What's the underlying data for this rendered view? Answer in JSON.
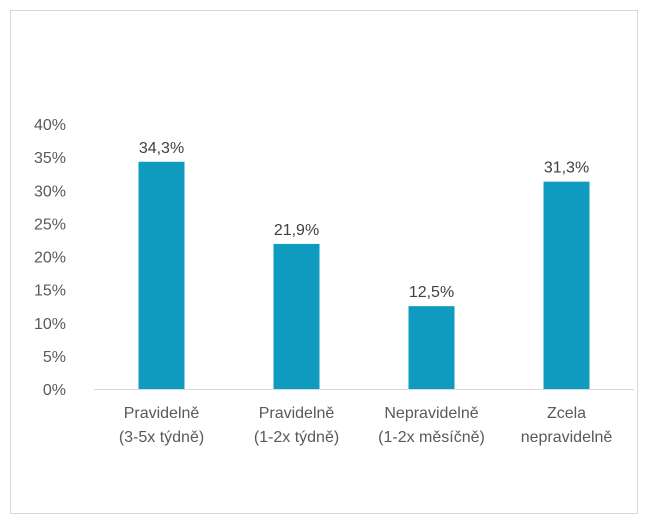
{
  "chart_data": {
    "type": "bar",
    "categories": [
      [
        "Pravidelně",
        "(3-5x týdně)"
      ],
      [
        "Pravidelně",
        "(1-2x týdně)"
      ],
      [
        "Nepravidelně",
        "(1-2x měsíčně)"
      ],
      [
        "Zcela",
        "nepravidelně"
      ]
    ],
    "values": [
      34.3,
      21.9,
      12.5,
      31.3
    ],
    "data_labels": [
      "34,3%",
      "21,9%",
      "12,5%",
      "31,3%"
    ],
    "y_ticks": [
      "0%",
      "5%",
      "10%",
      "15%",
      "20%",
      "25%",
      "30%",
      "35%",
      "40%"
    ],
    "ylim": [
      0,
      40
    ],
    "grid": false,
    "legend": false,
    "bar_color": "#0e9bbf",
    "axis_color": "#d9d9d9"
  }
}
